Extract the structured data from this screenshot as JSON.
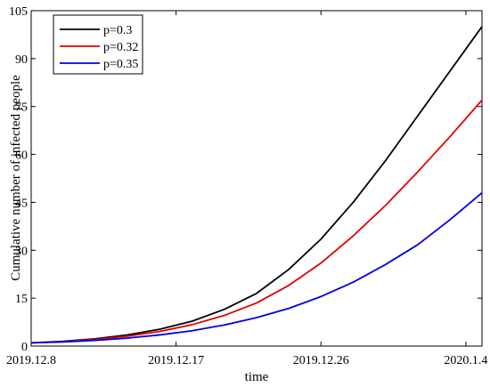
{
  "chart_data": {
    "type": "line",
    "xlabel": "time",
    "ylabel": "Cumulative number of infected people",
    "xlim": [
      "2019-12-08",
      "2020-01-05"
    ],
    "ylim": [
      0,
      105
    ],
    "x_ticks": [
      "2019-12-08",
      "2019-12-17",
      "2019-12-26",
      "2020-01-04"
    ],
    "x_tick_labels": [
      "2019.12.8",
      "2019.12.17",
      "2019.12.26",
      "2020.1.4"
    ],
    "y_ticks": [
      0,
      15,
      30,
      45,
      60,
      75,
      90,
      105
    ],
    "y_tick_labels": [
      "0",
      "15",
      "30",
      "45",
      "60",
      "75",
      "90",
      "105"
    ],
    "grid": false,
    "legend_position": "top-left",
    "x": [
      "2019-12-08",
      "2019-12-10",
      "2019-12-12",
      "2019-12-14",
      "2019-12-16",
      "2019-12-18",
      "2019-12-20",
      "2019-12-22",
      "2019-12-24",
      "2019-12-26",
      "2019-12-28",
      "2019-12-30",
      "2020-01-01",
      "2020-01-03",
      "2020-01-05"
    ],
    "series": [
      {
        "name": "p=0.3",
        "color": "#000000",
        "values": [
          1,
          1.5,
          2.3,
          3.5,
          5.3,
          7.8,
          11.5,
          16.5,
          24,
          33.5,
          45,
          58,
          72,
          86,
          100
        ]
      },
      {
        "name": "p=0.32",
        "color": "#e00000",
        "values": [
          1,
          1.4,
          2.1,
          3.1,
          4.6,
          6.7,
          9.6,
          13.5,
          19,
          26,
          34.5,
          44,
          54.5,
          65.5,
          77
        ]
      },
      {
        "name": "p=0.35",
        "color": "#0000e0",
        "values": [
          1,
          1.3,
          1.8,
          2.5,
          3.5,
          4.8,
          6.6,
          8.9,
          11.8,
          15.5,
          20,
          25.5,
          31.7,
          39.5,
          48
        ]
      }
    ]
  }
}
